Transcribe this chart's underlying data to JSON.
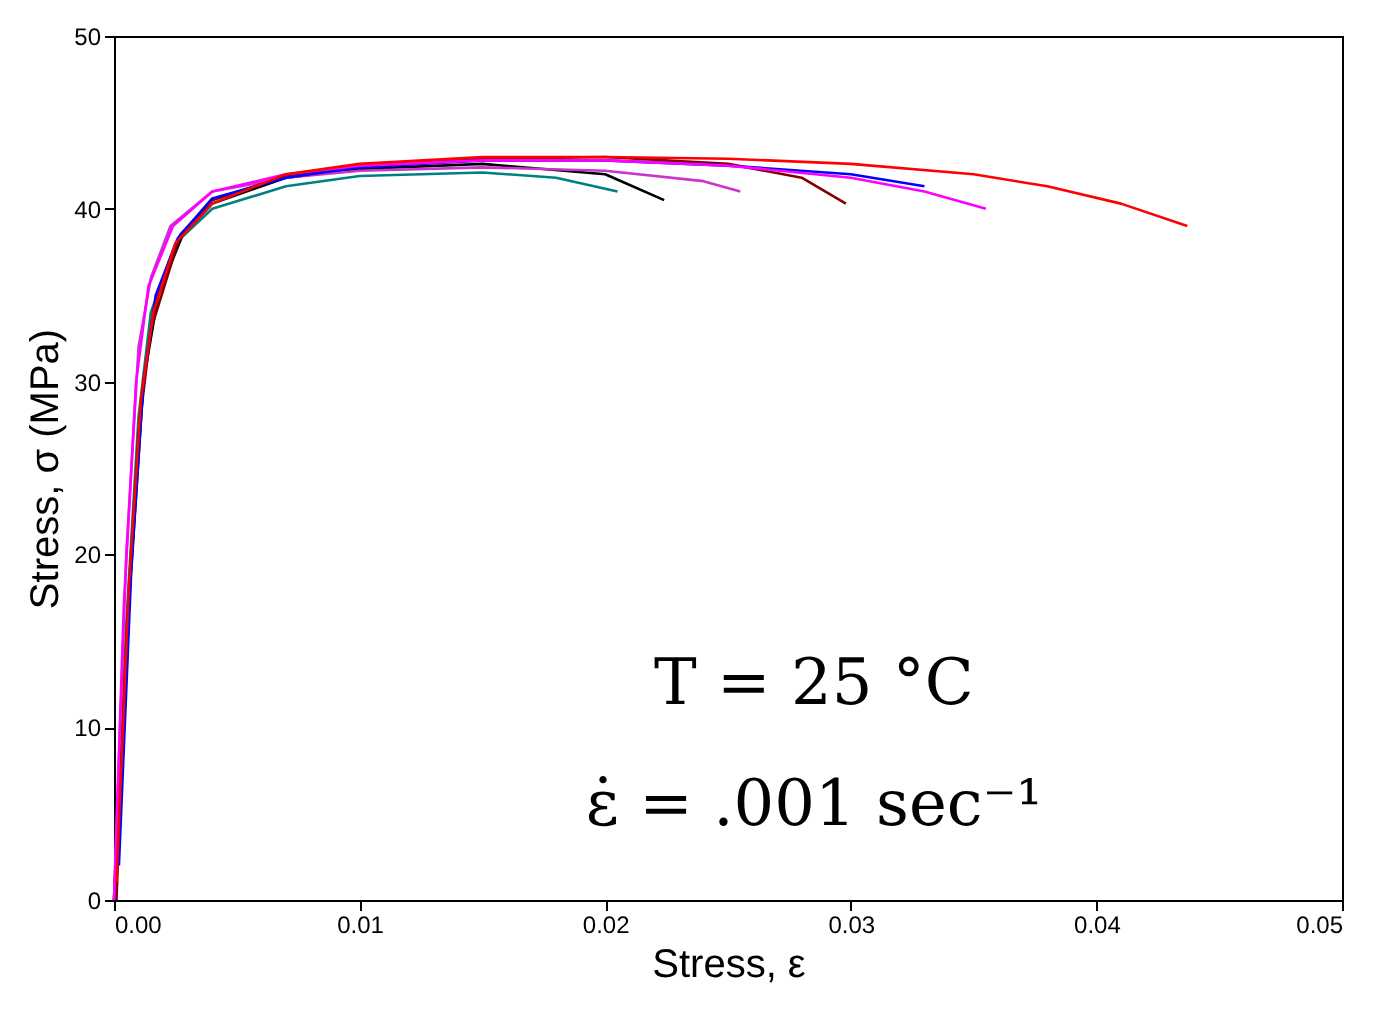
{
  "chart_data": {
    "type": "line",
    "xlabel": "Stress, ε",
    "ylabel": "Stress, σ (MPa)",
    "xlim": [
      0,
      0.05
    ],
    "ylim": [
      0,
      50
    ],
    "xticks": [
      {
        "value": 0,
        "label": "0.00"
      },
      {
        "value": 0.01,
        "label": "0.01"
      },
      {
        "value": 0.02,
        "label": "0.02"
      },
      {
        "value": 0.03,
        "label": "0.03"
      },
      {
        "value": 0.04,
        "label": "0.04"
      },
      {
        "value": 0.05,
        "label": "0.05"
      }
    ],
    "yticks": [
      0,
      10,
      20,
      30,
      40,
      50
    ],
    "grid": false,
    "marker": "none",
    "line_style": "solid",
    "annotations": [
      "T = 25 °C",
      "ε̇ = .001 sec⁻¹"
    ],
    "series": [
      {
        "color": "#ff0000",
        "x": [
          0.0001,
          0.0006,
          0.0011,
          0.0016,
          0.0025,
          0.004,
          0.007,
          0.01,
          0.015,
          0.02,
          0.025,
          0.03,
          0.035,
          0.038,
          0.041,
          0.0437
        ],
        "values": [
          1,
          18,
          29,
          34,
          38,
          40.3,
          42,
          42.6,
          43,
          43,
          42.9,
          42.6,
          42,
          41.3,
          40.3,
          39
        ]
      },
      {
        "color": "#ff00ff",
        "x": [
          0,
          0.0004,
          0.0009,
          0.0014,
          0.0024,
          0.004,
          0.007,
          0.01,
          0.015,
          0.02,
          0.025,
          0.03,
          0.033,
          0.0355
        ],
        "values": [
          0,
          17,
          30,
          35.5,
          39,
          41,
          42,
          42.5,
          42.8,
          42.8,
          42.5,
          41.8,
          41,
          40
        ]
      },
      {
        "color": "#0000ff",
        "x": [
          0.0002,
          0.0007,
          0.0012,
          0.0017,
          0.0026,
          0.004,
          0.007,
          0.01,
          0.015,
          0.02,
          0.025,
          0.03,
          0.033
        ],
        "values": [
          2,
          19,
          30,
          35,
          38.3,
          40.6,
          41.8,
          42.4,
          42.8,
          42.8,
          42.5,
          42,
          41.3
        ]
      },
      {
        "color": "#800000",
        "x": [
          0.0001,
          0.0005,
          0.001,
          0.0015,
          0.0027,
          0.004,
          0.007,
          0.01,
          0.015,
          0.02,
          0.025,
          0.028,
          0.0298
        ],
        "values": [
          0,
          15,
          27,
          33,
          38.5,
          40.5,
          41.9,
          42.5,
          42.9,
          43,
          42.6,
          41.8,
          40.3
        ]
      },
      {
        "color": "#cc33cc",
        "x": [
          0,
          0.0005,
          0.001,
          0.0015,
          0.0023,
          0.004,
          0.007,
          0.01,
          0.015,
          0.02,
          0.024,
          0.0255
        ],
        "values": [
          0,
          20,
          32,
          36,
          39,
          41,
          41.8,
          42.2,
          42.4,
          42.2,
          41.6,
          41
        ]
      },
      {
        "color": "#000000",
        "x": [
          0,
          0.0006,
          0.0012,
          0.0018,
          0.0028,
          0.004,
          0.007,
          0.01,
          0.015,
          0.02,
          0.0224
        ],
        "values": [
          0,
          17,
          30,
          35,
          38.5,
          40.3,
          41.8,
          42.3,
          42.6,
          42,
          40.5
        ]
      },
      {
        "color": "#008080",
        "x": [
          0,
          0.0005,
          0.001,
          0.0015,
          0.0025,
          0.004,
          0.007,
          0.01,
          0.015,
          0.018,
          0.0205
        ],
        "values": [
          0,
          16,
          28,
          34,
          38,
          40,
          41.3,
          41.9,
          42.1,
          41.8,
          41
        ]
      }
    ]
  }
}
